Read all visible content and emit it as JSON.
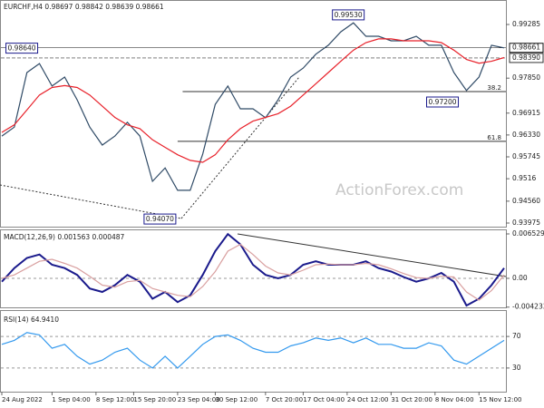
{
  "chart_data": [
    {
      "type": "line",
      "title": "EURCHF,H4 0.98697 0.98842 0.98639 0.98661",
      "watermark": "ActionForex.com",
      "ylim": [
        0.93878,
        0.9994
      ],
      "yticks": [
        0.99285,
        {
          "value": 0.9785,
          "label": "0.97850"
        },
        0.96915,
        {
          "value": 0.9633,
          "label": "0.96330"
        },
        0.95745,
        0.9516,
        {
          "value": 0.9456,
          "label": "0.94560"
        },
        0.93975
      ],
      "series": [
        {
          "name": "EURCHF",
          "color": "#2f4a66",
          "values": [
            0.963,
            0.9654,
            0.98,
            0.9824,
            0.9764,
            0.9788,
            0.9727,
            0.9654,
            0.9606,
            0.963,
            0.9667,
            0.963,
            0.9509,
            0.9545,
            0.9485,
            0.9485,
            0.9582,
            0.9715,
            0.9764,
            0.9703,
            0.9703,
            0.9679,
            0.9727,
            0.9788,
            0.9812,
            0.9849,
            0.9873,
            0.9909,
            0.9933,
            0.9897,
            0.9897,
            0.9885,
            0.9885,
            0.9897,
            0.9873,
            0.9873,
            0.98,
            0.9752,
            0.9788,
            0.9873,
            0.9866
          ]
        },
        {
          "name": "MA",
          "color": "#e8212a",
          "values": [
            0.964,
            0.966,
            0.97,
            0.974,
            0.976,
            0.9765,
            0.976,
            0.974,
            0.971,
            0.968,
            0.966,
            0.965,
            0.962,
            0.96,
            0.958,
            0.9565,
            0.956,
            0.958,
            0.962,
            0.965,
            0.967,
            0.968,
            0.969,
            0.971,
            0.974,
            0.977,
            0.98,
            0.983,
            0.986,
            0.988,
            0.989,
            0.989,
            0.9885,
            0.9885,
            0.9885,
            0.988,
            0.986,
            0.9835,
            0.9825,
            0.983,
            0.984
          ]
        }
      ],
      "levels": [
        {
          "value": 0.98661,
          "label": "0.98661",
          "color": "#111111"
        },
        {
          "value": 0.9839,
          "label": "0.98390",
          "color": "#333333"
        }
      ],
      "annotations": [
        {
          "label": "0.98640",
          "value": 0.9864,
          "x": 3
        },
        {
          "label": "0.99530",
          "value": 0.9953,
          "x": 29
        },
        {
          "label": "0.97200",
          "value": 0.972,
          "x": 36.5
        },
        {
          "label": "0.94070",
          "value": 0.9407,
          "x": 14
        }
      ],
      "fib": [
        {
          "label": "38.2",
          "value": 0.9749,
          "x": 14.4
        },
        {
          "label": "61.8",
          "value": 0.9616,
          "x": 14
        }
      ]
    },
    {
      "type": "line",
      "title": "MACD(12,26,9) 0.001563 0.000487",
      "ylim": [
        -0.0044,
        0.00706
      ],
      "yticks": [
        0.006529,
        {
          "value": 0,
          "label": "0.00"
        },
        -0.004233
      ],
      "series": [
        {
          "name": "MACD",
          "color": "#1a1a8c",
          "values": [
            -0.0005,
            0.0015,
            0.003,
            0.0035,
            0.002,
            0.0015,
            0.0005,
            -0.0015,
            -0.002,
            -0.001,
            0.0005,
            -0.0005,
            -0.003,
            -0.002,
            -0.0035,
            -0.0025,
            0.0005,
            0.004,
            0.0065,
            0.005,
            0.002,
            0.0005,
            0,
            0.0005,
            0.002,
            0.0025,
            0.002,
            0.002,
            0.002,
            0.0025,
            0.0015,
            0.001,
            0.0002,
            -0.0005,
            0,
            0.0008,
            -0.0005,
            -0.004,
            -0.003,
            -0.001,
            0.0015
          ]
        },
        {
          "name": "Signal",
          "color": "#d9a0a0",
          "values": [
            0,
            0.0005,
            0.0015,
            0.0025,
            0.0028,
            0.0022,
            0.0015,
            0.0003,
            -0.001,
            -0.0013,
            -0.0005,
            -0.0003,
            -0.0015,
            -0.002,
            -0.0025,
            -0.0027,
            -0.0012,
            0.001,
            0.004,
            0.005,
            0.0035,
            0.0018,
            0.0008,
            0.0005,
            0.0012,
            0.002,
            0.0021,
            0.002,
            0.002,
            0.0022,
            0.002,
            0.0014,
            0.0007,
            0.0001,
            0,
            0.0003,
            0.0002,
            -0.002,
            -0.0032,
            -0.0018,
            0.0005
          ]
        }
      ]
    },
    {
      "type": "line",
      "title": "RSI(14) 64.9410",
      "ylim": [
        0,
        100
      ],
      "yticks": [
        70,
        30
      ],
      "series": [
        {
          "name": "RSI",
          "color": "#3399ee",
          "values": [
            60,
            65,
            75,
            72,
            55,
            60,
            45,
            35,
            40,
            50,
            55,
            40,
            30,
            45,
            30,
            45,
            60,
            70,
            72,
            65,
            55,
            50,
            50,
            58,
            62,
            68,
            65,
            68,
            62,
            68,
            60,
            60,
            55,
            55,
            62,
            58,
            40,
            35,
            45,
            55,
            65
          ]
        }
      ],
      "xticks": [
        {
          "value": 0,
          "label": "24 Aug 2022"
        },
        {
          "value": 4,
          "label": "1 Sep 04:00"
        },
        {
          "value": 7.5,
          "label": "8 Sep 12:00"
        },
        {
          "value": 10.5,
          "label": "15 Sep 20:00"
        },
        {
          "value": 14,
          "label": "23 Sep 04:00"
        },
        {
          "value": 17,
          "label": "30 Sep 12:00"
        },
        {
          "value": 21,
          "label": "7 Oct 20:00"
        },
        {
          "value": 24,
          "label": "17 Oct 04:00"
        },
        {
          "value": 27.5,
          "label": "24 Oct 12:00"
        },
        {
          "value": 31,
          "label": "31 Oct 20:00"
        },
        {
          "value": 34.5,
          "label": "8 Nov 04:00"
        },
        {
          "value": 38,
          "label": "15 Nov 12:00"
        }
      ]
    }
  ]
}
